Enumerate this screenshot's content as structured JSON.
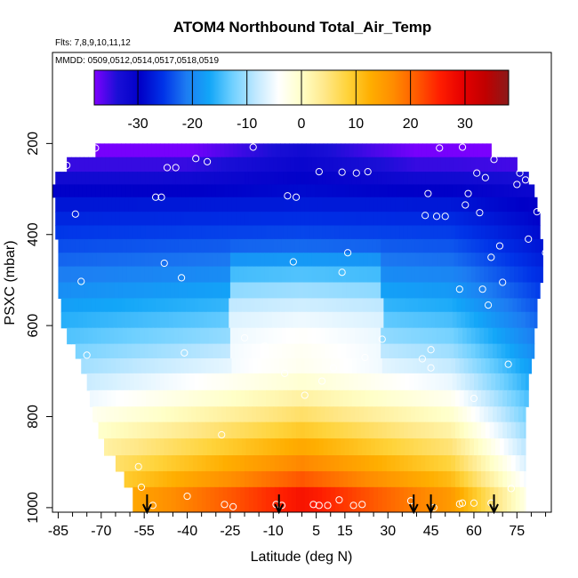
{
  "chart_data": {
    "type": "heatmap",
    "title": "ATOM4 Northbound Total_Air_Temp",
    "subtitle_flights": "Flts: 7,8,9,10,11,12",
    "subtitle_dates": "MMDD: 0509,0512,0514,0517,0518,0519",
    "xlabel": "Latitude (deg N)",
    "ylabel": "PSXC (mbar)",
    "xlim": [
      -87,
      87
    ],
    "ylim": [
      1010,
      0
    ],
    "x_ticks": [
      -85,
      -70,
      -55,
      -40,
      -25,
      -10,
      5,
      15,
      30,
      45,
      60,
      75
    ],
    "y_ticks": [
      200,
      400,
      600,
      800,
      1000
    ],
    "colorbar": {
      "range": [
        -38,
        38
      ],
      "ticks": [
        -30,
        -20,
        -10,
        0,
        10,
        20,
        30
      ],
      "colors": [
        "#7f00ff",
        "#1a0fd6",
        "#0000c8",
        "#0033e8",
        "#1d7cf2",
        "#12a6f8",
        "#6fd0ff",
        "#bfe8ff",
        "#ffffff",
        "#ffffc8",
        "#ffe88a",
        "#ffd33a",
        "#ffae00",
        "#ff8c00",
        "#ff5a00",
        "#ff1e00",
        "#e60000",
        "#c00000",
        "#8b1a1a"
      ]
    },
    "sample_points": [
      [
        -86,
        215
      ],
      [
        -82,
        248
      ],
      [
        -79,
        355
      ],
      [
        -77,
        503
      ],
      [
        -75,
        665
      ],
      [
        -74,
        815
      ],
      [
        -72,
        210
      ],
      [
        -57,
        910
      ],
      [
        -56,
        955
      ],
      [
        -52,
        995
      ],
      [
        -51,
        318
      ],
      [
        -49,
        318
      ],
      [
        -48,
        463
      ],
      [
        -47,
        253
      ],
      [
        -44,
        253
      ],
      [
        -42,
        495
      ],
      [
        -41,
        660
      ],
      [
        -40,
        975
      ],
      [
        -37,
        233
      ],
      [
        -33,
        240
      ],
      [
        -28,
        840
      ],
      [
        -27,
        993
      ],
      [
        -24,
        998
      ],
      [
        -20,
        627
      ],
      [
        -17,
        208
      ],
      [
        -13,
        645
      ],
      [
        -9,
        993
      ],
      [
        -7,
        995
      ],
      [
        -6,
        705
      ],
      [
        -5,
        315
      ],
      [
        -3,
        460
      ],
      [
        -2,
        318
      ],
      [
        1,
        753
      ],
      [
        4,
        993
      ],
      [
        6,
        995
      ],
      [
        6,
        262
      ],
      [
        7,
        722
      ],
      [
        9,
        995
      ],
      [
        11,
        693
      ],
      [
        13,
        983
      ],
      [
        14,
        263
      ],
      [
        14,
        483
      ],
      [
        16,
        440
      ],
      [
        18,
        995
      ],
      [
        19,
        265
      ],
      [
        21,
        993
      ],
      [
        22,
        670
      ],
      [
        23,
        262
      ],
      [
        28,
        630
      ],
      [
        38,
        985
      ],
      [
        42,
        673
      ],
      [
        43,
        358
      ],
      [
        44,
        310
      ],
      [
        45,
        653
      ],
      [
        45,
        693
      ],
      [
        46,
        1000
      ],
      [
        47,
        360
      ],
      [
        48,
        210
      ],
      [
        50,
        360
      ],
      [
        55,
        520
      ],
      [
        55,
        992
      ],
      [
        56,
        990
      ],
      [
        56,
        208
      ],
      [
        57,
        335
      ],
      [
        58,
        310
      ],
      [
        60,
        990
      ],
      [
        60,
        760
      ],
      [
        61,
        265
      ],
      [
        62,
        352
      ],
      [
        63,
        520
      ],
      [
        64,
        275
      ],
      [
        65,
        555
      ],
      [
        66,
        990
      ],
      [
        66,
        450
      ],
      [
        67,
        235
      ],
      [
        69,
        425
      ],
      [
        70,
        505
      ],
      [
        71,
        212
      ],
      [
        72,
        685
      ],
      [
        73,
        958
      ],
      [
        75,
        290
      ],
      [
        76,
        265
      ],
      [
        78,
        280
      ],
      [
        79,
        410
      ],
      [
        81,
        995
      ],
      [
        82,
        350
      ],
      [
        84,
        265
      ],
      [
        85,
        440
      ]
    ],
    "arrows_lat": [
      -54,
      -8,
      39,
      45,
      67
    ]
  }
}
